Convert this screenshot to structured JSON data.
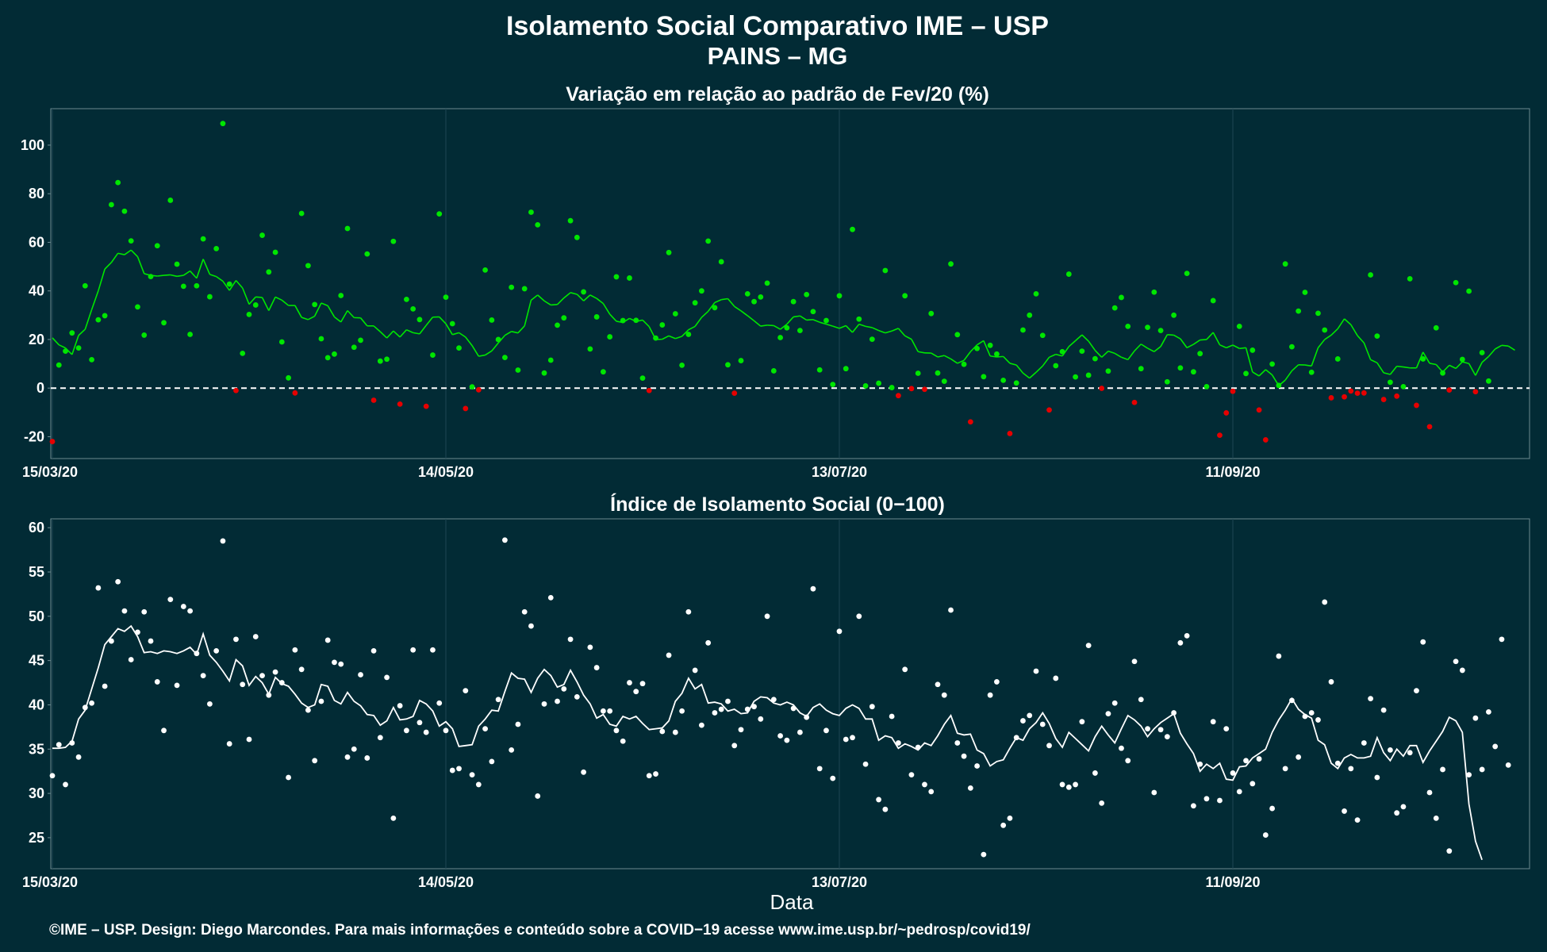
{
  "header": {
    "title": "Isolamento Social Comparativo IME – USP",
    "subtitle": "PAINS – MG"
  },
  "xlabel": "Data",
  "credit": "©IME – USP. Design: Diego Marcondes. Para mais informações e conteúdo sobre a COVID−19 acesse www.ime.usp.br/~pedrosp/covid19/",
  "colors": {
    "background": "#022b35",
    "positive": "#00e600",
    "negative": "#e60000",
    "index": "#ffffff",
    "grid": "#1d4652"
  },
  "chart_data": [
    {
      "type": "scatter",
      "title": "Variação em relação ao padrão de Fev/20 (%)",
      "x_start": "2020-03-15",
      "x_end": "2020-10-26",
      "xticks": [
        "15/03/20",
        "14/05/20",
        "13/07/20",
        "11/09/20"
      ],
      "yticks": [
        100,
        80,
        60,
        40,
        20,
        0,
        -20
      ],
      "ylim": [
        -29,
        115
      ],
      "reference_line": 0,
      "series": [
        {
          "values": [
            -22.0,
            9.5,
            15.2,
            22.7,
            16.5,
            42.1,
            11.7,
            28.1,
            29.8,
            75.5,
            84.6,
            72.8,
            60.6,
            33.4,
            21.8,
            45.9,
            58.6,
            26.9,
            77.3,
            51.0,
            41.9,
            22.1,
            42.1,
            61.4,
            37.6,
            57.4,
            108.9,
            42.8,
            -1.0,
            14.3,
            30.3,
            34.2,
            62.9,
            47.8,
            55.9,
            19.0,
            4.2,
            -2.0,
            71.9,
            50.4,
            34.4,
            20.3,
            12.5,
            14.0,
            38.1,
            65.7,
            16.8,
            19.7,
            55.2,
            -5.0,
            11.1,
            11.9,
            60.4,
            -6.6,
            36.5,
            32.6,
            28.2,
            -7.5,
            13.6,
            71.7,
            37.4,
            26.5,
            16.5,
            -8.4,
            0.5,
            -0.7,
            48.6,
            28.0,
            20.0,
            12.6,
            41.5,
            7.4,
            40.9,
            72.4,
            67.2,
            6.2,
            11.5,
            25.9,
            28.9,
            68.9,
            62.0,
            39.6,
            16.1,
            29.3,
            6.7,
            21.1,
            45.8,
            27.8,
            45.3,
            27.9,
            4.1,
            -1.0,
            20.6,
            26.0,
            55.8,
            30.6,
            9.4,
            22.1,
            35.1,
            40.0,
            60.5,
            33.1,
            52.0,
            9.6,
            -2.1,
            11.3,
            38.8,
            35.6,
            37.5,
            43.2,
            7.1,
            20.8,
            24.8,
            35.6,
            23.7,
            38.5,
            31.5,
            7.5,
            27.8,
            1.5,
            38.0,
            8.0,
            65.3,
            28.4,
            0.9,
            20.1,
            2.0,
            48.4,
            0.2,
            -3.1,
            38.0,
            -0.2,
            6.1,
            -0.5,
            30.7,
            6.2,
            2.8,
            51.1,
            22.0,
            9.8,
            -13.9,
            16.3,
            4.7,
            17.6,
            14.0,
            3.2,
            -18.7,
            2.1,
            23.9,
            30.0,
            38.8,
            21.7,
            -9.0,
            9.2,
            15.0,
            46.9,
            4.6,
            15.2,
            5.3,
            12.1,
            -0.1,
            7.0,
            33.0,
            37.3,
            25.4,
            -5.9,
            8.0,
            25.0,
            39.5,
            23.7,
            2.6,
            30.0,
            8.3,
            47.2,
            6.7,
            14.2,
            0.6,
            36.0,
            -19.4,
            -10.2,
            -1.3,
            25.4,
            6.0,
            15.6,
            -9.0,
            -21.3,
            9.9,
            1.1,
            51.1,
            17.0,
            31.7,
            39.4,
            6.5,
            30.8,
            23.9,
            -4.0,
            12.0,
            -3.6,
            -1.2,
            -2.1,
            -2.0,
            46.6,
            21.4,
            -4.7,
            2.4,
            -3.3,
            0.6,
            45.0,
            -7.1,
            12.0,
            -15.9,
            24.8,
            6.2,
            -0.8,
            43.4,
            11.8,
            39.9,
            -1.5,
            14.6,
            2.9
          ]
        },
        {
          "values": [
            20.7,
            17.8,
            16.5,
            13.8,
            21.7,
            24.2,
            32.3,
            40.0,
            49.0,
            51.7,
            55.5,
            54.9,
            56.8,
            54.1,
            47.1,
            46.4,
            46.1,
            46.4,
            46.6,
            46.0,
            46.4,
            48.2,
            45.2,
            53.1,
            46.8,
            45.9,
            44.0,
            40.2,
            44.3,
            41.2,
            34.5,
            37.5,
            37.3,
            31.9,
            37.5,
            36.2,
            34.0,
            34.0,
            29.1,
            28.2,
            29.6,
            35.0,
            33.9,
            29.3,
            27.2,
            31.9,
            29.0,
            28.9,
            25.6,
            25.6,
            23.2,
            20.6,
            23.5,
            21.0,
            24.0,
            22.8,
            22.3,
            25.8,
            29.2,
            29.3,
            26.5,
            22.0,
            22.8,
            21.0,
            17.5,
            13.1,
            13.6,
            15.3,
            18.6,
            21.7,
            23.3,
            22.7,
            25.6,
            36.2,
            38.3,
            35.9,
            34.2,
            34.4,
            37.1,
            39.3,
            38.6,
            35.9,
            38.3,
            36.9,
            34.8,
            30.4,
            27.5,
            27.0,
            28.7,
            27.4,
            28.0,
            25.3,
            20.0,
            20.1,
            21.5,
            20.4,
            21.3,
            24.0,
            25.4,
            29.1,
            31.6,
            35.2,
            36.4,
            36.8,
            33.6,
            31.8,
            29.8,
            27.7,
            25.5,
            25.9,
            25.7,
            24.2,
            26.3,
            29.3,
            29.7,
            28.0,
            28.2,
            27.1,
            26.3,
            25.5,
            24.6,
            25.7,
            22.9,
            26.3,
            25.4,
            24.9,
            23.7,
            22.7,
            23.5,
            24.6,
            21.5,
            20.1,
            15.0,
            14.5,
            14.4,
            12.8,
            13.4,
            12.0,
            10.2,
            11.4,
            15.0,
            17.8,
            19.5,
            13.2,
            12.8,
            13.0,
            10.2,
            9.5,
            6.2,
            4.1,
            6.5,
            9.1,
            12.7,
            13.9,
            13.2,
            17.1,
            19.5,
            21.9,
            19.3,
            15.5,
            12.7,
            15.2,
            14.3,
            12.7,
            11.7,
            15.3,
            18.1,
            16.4,
            15.0,
            17.1,
            22.0,
            21.8,
            20.3,
            16.6,
            18.0,
            19.8,
            20.0,
            22.9,
            17.8,
            16.6,
            17.7,
            16.3,
            16.6,
            6.6,
            5.0,
            7.6,
            5.4,
            1.0,
            3.3,
            7.1,
            9.6,
            9.5,
            9.1,
            16.6,
            20.0,
            21.8,
            24.4,
            28.5,
            26.1,
            21.6,
            18.6,
            11.7,
            10.4,
            6.3,
            5.6,
            9.0,
            8.7,
            8.3,
            8.3,
            14.8,
            10.2,
            9.7,
            6.6,
            9.4,
            8.1,
            10.8,
            10.1,
            5.2,
            10.6,
            13.0,
            16.1,
            17.6,
            17.3,
            15.6
          ]
        }
      ]
    },
    {
      "type": "scatter",
      "title": "Índice de Isolamento Social (0−100)",
      "x_start": "2020-03-15",
      "x_end": "2020-10-26",
      "xticks": [
        "15/03/20",
        "14/05/20",
        "13/07/20",
        "11/09/20"
      ],
      "yticks": [
        60,
        55,
        50,
        45,
        40,
        35,
        30,
        25
      ],
      "ylim": [
        21.5,
        61
      ],
      "series": [
        {
          "values": [
            32.0,
            35.5,
            31.0,
            35.7,
            34.1,
            39.7,
            40.2,
            53.2,
            42.1,
            47.2,
            53.9,
            50.6,
            45.1,
            48.2,
            50.5,
            47.2,
            42.6,
            37.1,
            51.9,
            42.2,
            51.1,
            50.6,
            45.8,
            43.3,
            40.1,
            46.1,
            58.5,
            35.6,
            47.4,
            42.3,
            36.1,
            47.7,
            43.3,
            41.1,
            43.7,
            42.5,
            31.8,
            46.2,
            44.0,
            39.4,
            33.7,
            40.4,
            47.3,
            44.8,
            44.6,
            34.1,
            35.0,
            43.4,
            34.0,
            46.1,
            36.3,
            43.1,
            27.2,
            39.9,
            37.1,
            46.2,
            38.0,
            36.9,
            46.2,
            40.2,
            37.1,
            32.6,
            32.8,
            41.6,
            32.1,
            31.0,
            37.3,
            33.6,
            40.6,
            58.6,
            34.9,
            37.8,
            50.5,
            48.9,
            29.7,
            40.1,
            52.1,
            40.4,
            41.8,
            47.4,
            40.9,
            32.4,
            46.5,
            44.2,
            39.3,
            39.3,
            37.1,
            35.9,
            42.5,
            41.5,
            42.4,
            32.0,
            32.2,
            37.0,
            45.6,
            36.9,
            39.3,
            50.5,
            43.9,
            37.7,
            47.0,
            39.1,
            39.5,
            40.4,
            35.4,
            37.2,
            39.5,
            39.8,
            38.4,
            50.0,
            40.6,
            36.5,
            36.0,
            39.6,
            36.9,
            38.6,
            53.1,
            32.8,
            37.1,
            31.7,
            48.3,
            36.1,
            36.3,
            50.0,
            33.3,
            39.8,
            29.3,
            28.2,
            38.7,
            35.7,
            44.0,
            32.1,
            35.2,
            31.0,
            30.2,
            42.3,
            41.1,
            50.7,
            35.7,
            34.2,
            30.6,
            33.1,
            23.1,
            41.1,
            42.6,
            26.4,
            27.2,
            36.3,
            38.2,
            38.8,
            43.8,
            37.8,
            35.4,
            43.0,
            31.0,
            30.7,
            31.0,
            38.1,
            46.7,
            32.3,
            28.9,
            39.0,
            40.2,
            35.1,
            33.7,
            44.9,
            40.6,
            37.3,
            30.1,
            37.2,
            36.4,
            39.1,
            47.0,
            47.8,
            28.6,
            33.3,
            29.4,
            38.1,
            29.2,
            37.3,
            32.3,
            30.2,
            33.7,
            31.1,
            33.9,
            25.3,
            28.3,
            45.5,
            32.8,
            40.5,
            34.1,
            38.7,
            39.1,
            38.3,
            51.6,
            42.6,
            33.4,
            28.0,
            32.8,
            27.0,
            35.7,
            40.7,
            31.8,
            39.4,
            34.9,
            27.8,
            28.5,
            34.6,
            41.6,
            47.1,
            30.1,
            27.2,
            32.7,
            23.5,
            44.9,
            43.9,
            32.1,
            38.5,
            32.7,
            39.2,
            35.3,
            47.4,
            33.2
          ]
        },
        {
          "values": [
            35.1,
            35.1,
            35.2,
            35.9,
            38.4,
            39.4,
            41.8,
            44.2,
            46.8,
            47.7,
            48.6,
            48.3,
            48.9,
            47.7,
            45.9,
            46.0,
            45.8,
            46.1,
            46.0,
            45.8,
            46.1,
            46.5,
            45.7,
            48.0,
            45.6,
            44.8,
            43.8,
            42.7,
            45.1,
            44.4,
            42.2,
            43.2,
            42.5,
            41.2,
            43.1,
            42.4,
            42.1,
            41.2,
            40.2,
            39.7,
            40.0,
            42.3,
            42.1,
            40.5,
            40.1,
            41.4,
            40.4,
            39.9,
            38.9,
            38.8,
            37.7,
            38.2,
            39.7,
            38.3,
            38.4,
            38.7,
            40.5,
            40.1,
            39.3,
            37.6,
            38.1,
            37.3,
            35.3,
            35.4,
            35.5,
            37.6,
            38.4,
            39.4,
            39.3,
            41.5,
            43.6,
            43.0,
            42.9,
            41.4,
            43.0,
            44.0,
            43.3,
            42.0,
            42.3,
            43.9,
            42.6,
            41.1,
            40.1,
            38.5,
            38.9,
            37.8,
            37.6,
            38.7,
            38.4,
            38.7,
            37.9,
            37.2,
            37.3,
            37.4,
            38.2,
            40.4,
            41.3,
            43.0,
            41.8,
            42.3,
            40.2,
            40.3,
            40.1,
            39.3,
            39.5,
            39.0,
            39.1,
            40.4,
            40.9,
            40.8,
            40.2,
            40.0,
            40.3,
            40.0,
            39.1,
            38.7,
            39.7,
            40.1,
            39.4,
            39.0,
            38.8,
            39.6,
            40.0,
            39.6,
            38.4,
            38.4,
            36.0,
            36.5,
            36.3,
            35.1,
            35.6,
            35.3,
            34.9,
            35.7,
            35.4,
            36.5,
            37.8,
            38.8,
            36.8,
            36.6,
            36.7,
            34.9,
            34.5,
            33.1,
            33.6,
            33.8,
            35.1,
            36.3,
            36.0,
            37.3,
            38.0,
            39.1,
            37.9,
            36.2,
            35.2,
            36.9,
            36.2,
            35.5,
            34.8,
            36.4,
            37.6,
            36.6,
            35.7,
            37.3,
            38.8,
            38.3,
            37.6,
            36.4,
            37.3,
            38.0,
            38.5,
            39.0,
            36.8,
            35.6,
            34.5,
            32.5,
            33.3,
            32.8,
            33.4,
            31.6,
            31.5,
            33.0,
            33.1,
            34.0,
            34.5,
            35.0,
            36.9,
            38.3,
            39.4,
            40.7,
            39.5,
            38.9,
            38.5,
            36.0,
            35.5,
            33.4,
            32.8,
            34.0,
            34.4,
            34.0,
            34.0,
            34.2,
            36.3,
            34.6,
            33.7,
            35.0,
            34.2,
            35.4,
            35.4,
            33.5,
            34.8,
            35.9,
            37.0,
            38.6,
            38.2,
            36.9,
            28.8,
            24.6,
            22.5
          ]
        }
      ]
    }
  ]
}
